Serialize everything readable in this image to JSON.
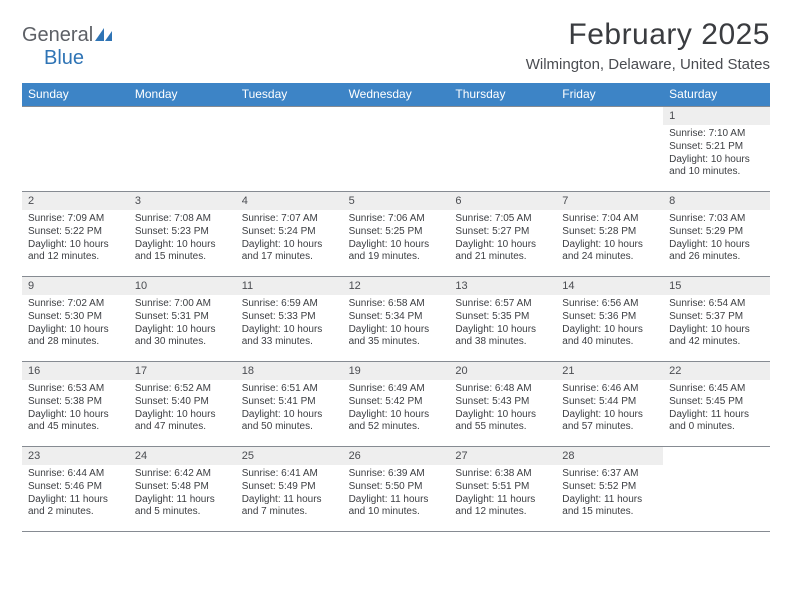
{
  "logo": {
    "word1": "General",
    "word2": "Blue"
  },
  "title": "February 2025",
  "subtitle": "Wilmington, Delaware, United States",
  "dayNames": [
    "Sunday",
    "Monday",
    "Tuesday",
    "Wednesday",
    "Thursday",
    "Friday",
    "Saturday"
  ],
  "colors": {
    "headerBar": "#3d84c6",
    "dayNumBg": "#eeeeee",
    "rule": "#868b92",
    "text": "#3c3e42",
    "logoGray": "#5d6066",
    "logoBlue": "#2f74b5"
  },
  "weeks": [
    [
      {
        "blank": true
      },
      {
        "blank": true
      },
      {
        "blank": true
      },
      {
        "blank": true
      },
      {
        "blank": true
      },
      {
        "blank": true
      },
      {
        "n": "1",
        "rise": "Sunrise: 7:10 AM",
        "set": "Sunset: 5:21 PM",
        "dl1": "Daylight: 10 hours",
        "dl2": "and 10 minutes."
      }
    ],
    [
      {
        "n": "2",
        "rise": "Sunrise: 7:09 AM",
        "set": "Sunset: 5:22 PM",
        "dl1": "Daylight: 10 hours",
        "dl2": "and 12 minutes."
      },
      {
        "n": "3",
        "rise": "Sunrise: 7:08 AM",
        "set": "Sunset: 5:23 PM",
        "dl1": "Daylight: 10 hours",
        "dl2": "and 15 minutes."
      },
      {
        "n": "4",
        "rise": "Sunrise: 7:07 AM",
        "set": "Sunset: 5:24 PM",
        "dl1": "Daylight: 10 hours",
        "dl2": "and 17 minutes."
      },
      {
        "n": "5",
        "rise": "Sunrise: 7:06 AM",
        "set": "Sunset: 5:25 PM",
        "dl1": "Daylight: 10 hours",
        "dl2": "and 19 minutes."
      },
      {
        "n": "6",
        "rise": "Sunrise: 7:05 AM",
        "set": "Sunset: 5:27 PM",
        "dl1": "Daylight: 10 hours",
        "dl2": "and 21 minutes."
      },
      {
        "n": "7",
        "rise": "Sunrise: 7:04 AM",
        "set": "Sunset: 5:28 PM",
        "dl1": "Daylight: 10 hours",
        "dl2": "and 24 minutes."
      },
      {
        "n": "8",
        "rise": "Sunrise: 7:03 AM",
        "set": "Sunset: 5:29 PM",
        "dl1": "Daylight: 10 hours",
        "dl2": "and 26 minutes."
      }
    ],
    [
      {
        "n": "9",
        "rise": "Sunrise: 7:02 AM",
        "set": "Sunset: 5:30 PM",
        "dl1": "Daylight: 10 hours",
        "dl2": "and 28 minutes."
      },
      {
        "n": "10",
        "rise": "Sunrise: 7:00 AM",
        "set": "Sunset: 5:31 PM",
        "dl1": "Daylight: 10 hours",
        "dl2": "and 30 minutes."
      },
      {
        "n": "11",
        "rise": "Sunrise: 6:59 AM",
        "set": "Sunset: 5:33 PM",
        "dl1": "Daylight: 10 hours",
        "dl2": "and 33 minutes."
      },
      {
        "n": "12",
        "rise": "Sunrise: 6:58 AM",
        "set": "Sunset: 5:34 PM",
        "dl1": "Daylight: 10 hours",
        "dl2": "and 35 minutes."
      },
      {
        "n": "13",
        "rise": "Sunrise: 6:57 AM",
        "set": "Sunset: 5:35 PM",
        "dl1": "Daylight: 10 hours",
        "dl2": "and 38 minutes."
      },
      {
        "n": "14",
        "rise": "Sunrise: 6:56 AM",
        "set": "Sunset: 5:36 PM",
        "dl1": "Daylight: 10 hours",
        "dl2": "and 40 minutes."
      },
      {
        "n": "15",
        "rise": "Sunrise: 6:54 AM",
        "set": "Sunset: 5:37 PM",
        "dl1": "Daylight: 10 hours",
        "dl2": "and 42 minutes."
      }
    ],
    [
      {
        "n": "16",
        "rise": "Sunrise: 6:53 AM",
        "set": "Sunset: 5:38 PM",
        "dl1": "Daylight: 10 hours",
        "dl2": "and 45 minutes."
      },
      {
        "n": "17",
        "rise": "Sunrise: 6:52 AM",
        "set": "Sunset: 5:40 PM",
        "dl1": "Daylight: 10 hours",
        "dl2": "and 47 minutes."
      },
      {
        "n": "18",
        "rise": "Sunrise: 6:51 AM",
        "set": "Sunset: 5:41 PM",
        "dl1": "Daylight: 10 hours",
        "dl2": "and 50 minutes."
      },
      {
        "n": "19",
        "rise": "Sunrise: 6:49 AM",
        "set": "Sunset: 5:42 PM",
        "dl1": "Daylight: 10 hours",
        "dl2": "and 52 minutes."
      },
      {
        "n": "20",
        "rise": "Sunrise: 6:48 AM",
        "set": "Sunset: 5:43 PM",
        "dl1": "Daylight: 10 hours",
        "dl2": "and 55 minutes."
      },
      {
        "n": "21",
        "rise": "Sunrise: 6:46 AM",
        "set": "Sunset: 5:44 PM",
        "dl1": "Daylight: 10 hours",
        "dl2": "and 57 minutes."
      },
      {
        "n": "22",
        "rise": "Sunrise: 6:45 AM",
        "set": "Sunset: 5:45 PM",
        "dl1": "Daylight: 11 hours",
        "dl2": "and 0 minutes."
      }
    ],
    [
      {
        "n": "23",
        "rise": "Sunrise: 6:44 AM",
        "set": "Sunset: 5:46 PM",
        "dl1": "Daylight: 11 hours",
        "dl2": "and 2 minutes."
      },
      {
        "n": "24",
        "rise": "Sunrise: 6:42 AM",
        "set": "Sunset: 5:48 PM",
        "dl1": "Daylight: 11 hours",
        "dl2": "and 5 minutes."
      },
      {
        "n": "25",
        "rise": "Sunrise: 6:41 AM",
        "set": "Sunset: 5:49 PM",
        "dl1": "Daylight: 11 hours",
        "dl2": "and 7 minutes."
      },
      {
        "n": "26",
        "rise": "Sunrise: 6:39 AM",
        "set": "Sunset: 5:50 PM",
        "dl1": "Daylight: 11 hours",
        "dl2": "and 10 minutes."
      },
      {
        "n": "27",
        "rise": "Sunrise: 6:38 AM",
        "set": "Sunset: 5:51 PM",
        "dl1": "Daylight: 11 hours",
        "dl2": "and 12 minutes."
      },
      {
        "n": "28",
        "rise": "Sunrise: 6:37 AM",
        "set": "Sunset: 5:52 PM",
        "dl1": "Daylight: 11 hours",
        "dl2": "and 15 minutes."
      },
      {
        "blank": true
      }
    ]
  ]
}
